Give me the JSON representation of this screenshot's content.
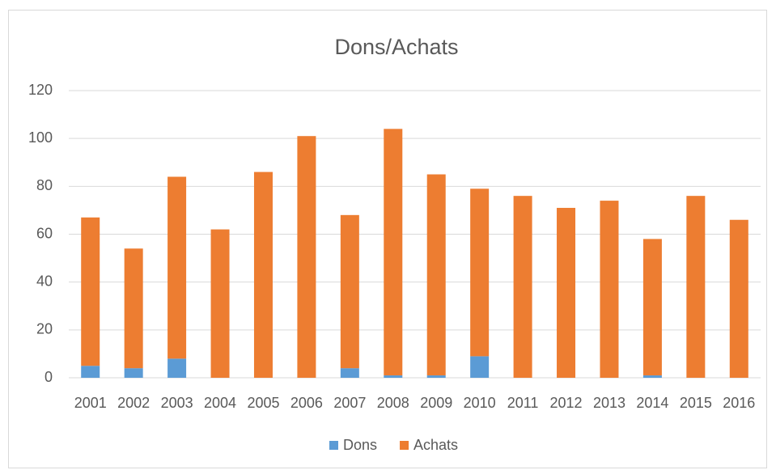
{
  "chart_data": {
    "type": "stacked_bar",
    "title": "Dons/Achats",
    "categories": [
      "2001",
      "2002",
      "2003",
      "2004",
      "2005",
      "2006",
      "2007",
      "2008",
      "2009",
      "2010",
      "2011",
      "2012",
      "2013",
      "2014",
      "2015",
      "2016"
    ],
    "series": [
      {
        "name": "Dons",
        "color": "#5b9bd5",
        "values": [
          5,
          4,
          8,
          0,
          0,
          0,
          4,
          1,
          1,
          9,
          0,
          0,
          0,
          1,
          0,
          0
        ]
      },
      {
        "name": "Achats",
        "color": "#ed7d31",
        "values": [
          62,
          50,
          76,
          62,
          86,
          101,
          64,
          103,
          84,
          70,
          76,
          71,
          74,
          57,
          76,
          66
        ]
      }
    ],
    "ylim": [
      0,
      120
    ],
    "yticks": [
      0,
      20,
      40,
      60,
      80,
      100,
      120
    ],
    "grid": true,
    "legend": "bottom"
  }
}
